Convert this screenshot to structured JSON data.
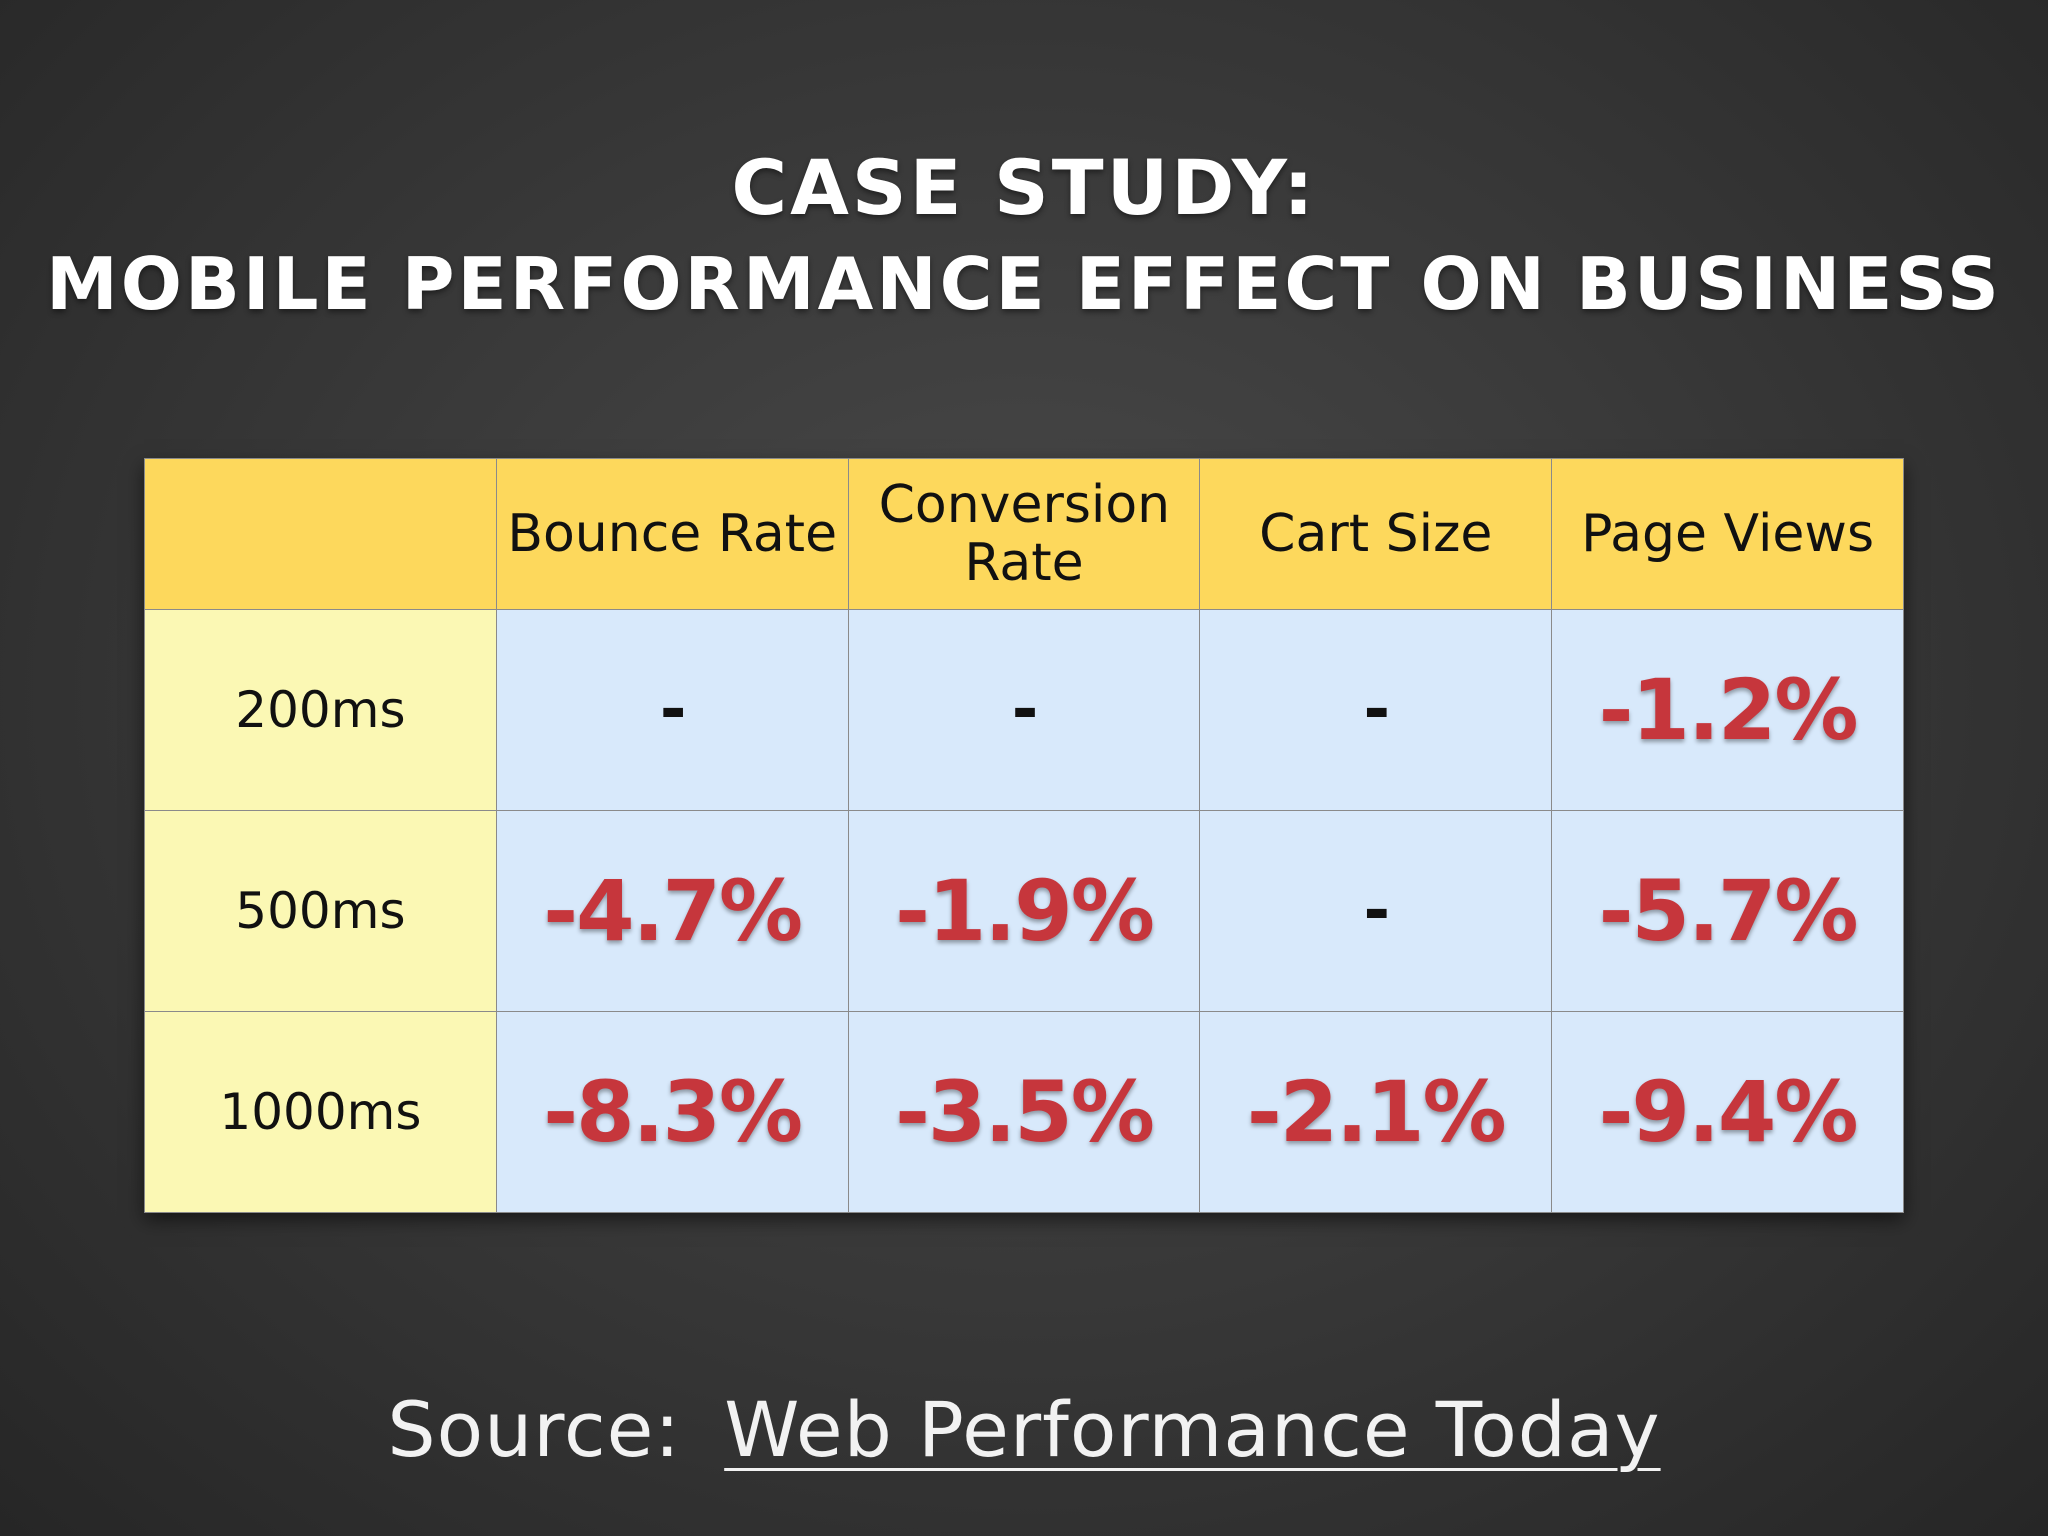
{
  "title": {
    "line1": "CASE STUDY:",
    "line2": "MOBILE PERFORMANCE EFFECT ON BUSINESS"
  },
  "colors": {
    "header_bg": "#fdd85c",
    "row_header_bg": "#fbf8b4",
    "cell_bg": "#d8e9fb",
    "negative_value": "#c6363c"
  },
  "chart_data": {
    "type": "table",
    "title": "CASE STUDY: MOBILE PERFORMANCE EFFECT ON BUSINESS",
    "columns": [
      "",
      "Bounce Rate",
      "Conversion Rate",
      "Cart Size",
      "Page Views"
    ],
    "rows": [
      {
        "label": "200ms",
        "cells": [
          "-",
          "-",
          "-",
          "-1.2%"
        ]
      },
      {
        "label": "500ms",
        "cells": [
          "-4.7%",
          "-1.9%",
          "-",
          "-5.7%"
        ]
      },
      {
        "label": "1000ms",
        "cells": [
          "-8.3%",
          "-3.5%",
          "-2.1%",
          "-9.4%"
        ]
      }
    ]
  },
  "source": {
    "prefix": "Source:",
    "link_text": "Web Performance Today"
  }
}
